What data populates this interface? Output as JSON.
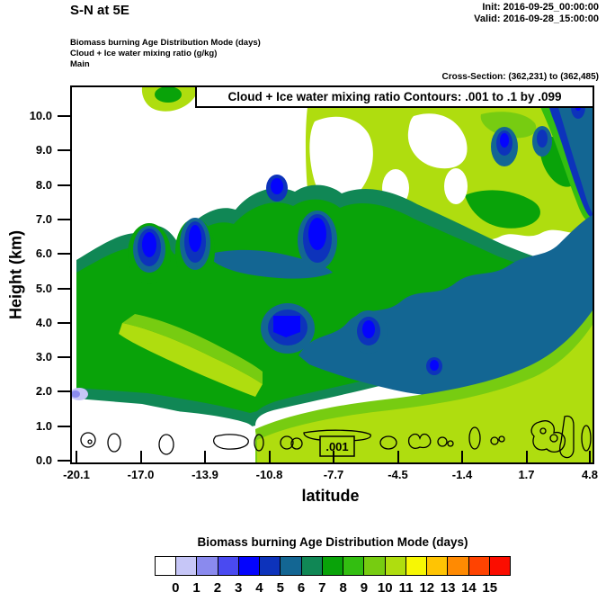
{
  "header": {
    "title": "S-N at 5E",
    "init_label": "Init: 2016-09-25_00:00:00",
    "valid_label": "Valid: 2016-09-28_15:00:00",
    "field_lines": [
      "Biomass burning Age Distribution Mode   (days)",
      "Cloud + Ice water mixing ratio   (g/kg)",
      "Main"
    ],
    "cross_section": "Cross-Section: (362,231) to (362,485)"
  },
  "plot": {
    "banner": "Cloud + Ice water mixing ratio Contours: .001 to .1 by .099",
    "contour_label": ".001",
    "xlabel": "latitude",
    "ylabel": "Height (km)",
    "x_ticks": [
      "-20.1",
      "-17.0",
      "-13.9",
      "-10.8",
      "-7.7",
      "-4.5",
      "-1.4",
      "1.7",
      "4.8"
    ],
    "y_ticks": [
      "0.0",
      "1.0",
      "2.0",
      "3.0",
      "4.0",
      "5.0",
      "6.0",
      "7.0",
      "8.0",
      "9.0",
      "10.0"
    ]
  },
  "colorbar": {
    "title": "Biomass burning Age Distribution Mode  (days)",
    "labels": [
      "0",
      "1",
      "2",
      "3",
      "4",
      "5",
      "6",
      "7",
      "8",
      "9",
      "10",
      "11",
      "12",
      "13",
      "14",
      "15"
    ],
    "colors": [
      "#FFFFFF",
      "#C6C6F7",
      "#8A8AEE",
      "#4A4AF1",
      "#0404FD",
      "#0D33BB",
      "#136693",
      "#108755",
      "#09A309",
      "#33BE11",
      "#77CC11",
      "#AFDD0F",
      "#F7F704",
      "#FFC403",
      "#FF8A02",
      "#FF4301",
      "#FB0D00"
    ]
  },
  "chart_data": {
    "type": "heatmap",
    "title": "S-N at 5E",
    "xlabel": "latitude",
    "ylabel": "Height (km)",
    "xlim": [
      -20.1,
      4.8
    ],
    "ylim": [
      0,
      10.9
    ],
    "x_ticks": [
      -20.1,
      -17.0,
      -13.9,
      -10.8,
      -7.7,
      -4.5,
      -1.4,
      1.7,
      4.8
    ],
    "y_ticks": [
      0,
      1,
      2,
      3,
      4,
      5,
      6,
      7,
      8,
      9,
      10
    ],
    "fill_variable": "Biomass burning Age Distribution Mode (days)",
    "fill_levels": [
      0,
      1,
      2,
      3,
      4,
      5,
      6,
      7,
      8,
      9,
      10,
      11,
      12,
      13,
      14,
      15
    ],
    "legend_position": "bottom",
    "grid": false,
    "contour_overlay": {
      "variable": "Cloud + Ice water mixing ratio (g/kg)",
      "levels": [
        0.001,
        0.1
      ],
      "labeled_level": ".001",
      "location_note": "small closed contour cells along 0.3-0.8 km across full latitude range; one cell near 10.8 km at lat 4.5"
    },
    "grid_estimate": {
      "note": "approximate age-mode (days) read from fill colors; null = white (below 0 / no data)",
      "lat": [
        -20.1,
        -17.0,
        -13.9,
        -10.8,
        -7.7,
        -4.5,
        -1.4,
        1.7,
        4.8
      ],
      "height_km": [
        10,
        9,
        8,
        7,
        6,
        5,
        4,
        3,
        2,
        1,
        0
      ],
      "values": [
        [
          null,
          null,
          10,
          10,
          null,
          10,
          10,
          5,
          5
        ],
        [
          null,
          null,
          null,
          10,
          10,
          null,
          3,
          10,
          5
        ],
        [
          null,
          null,
          null,
          8,
          10,
          10,
          10,
          7,
          5
        ],
        [
          null,
          3,
          null,
          8,
          7,
          10,
          10,
          7,
          5
        ],
        [
          null,
          3,
          7,
          8,
          7,
          7,
          10,
          5,
          5
        ],
        [
          8,
          7,
          8,
          8,
          7,
          7,
          5,
          5,
          5
        ],
        [
          10,
          8,
          8,
          8,
          3,
          7,
          5,
          5,
          10
        ],
        [
          10,
          8,
          7,
          8,
          8,
          5,
          5,
          10,
          10
        ],
        [
          1,
          8,
          10,
          10,
          10,
          5,
          10,
          10,
          10
        ],
        [
          null,
          null,
          null,
          10,
          11,
          11,
          11,
          11,
          11
        ],
        [
          null,
          null,
          null,
          11,
          11,
          11,
          11,
          11,
          11
        ]
      ]
    }
  }
}
